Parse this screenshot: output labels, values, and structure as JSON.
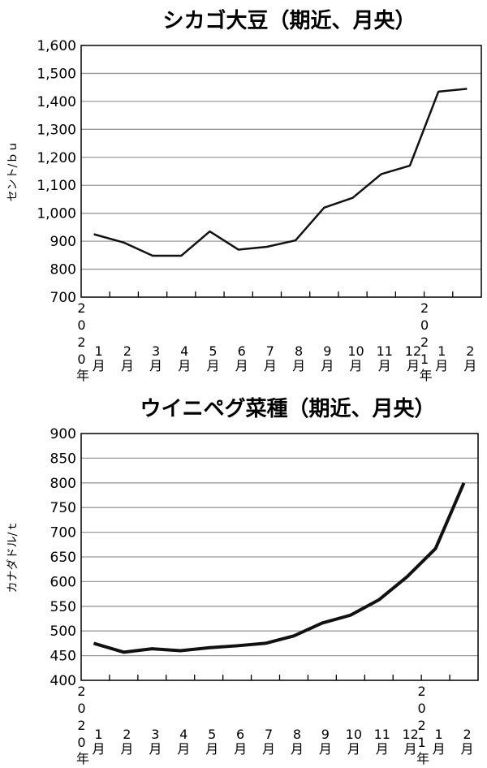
{
  "chart_data": [
    {
      "type": "line",
      "title": "シカゴ大豆（期近、月央）",
      "ylabel": "セント/ｂｕ",
      "xlabel": "",
      "ylim": [
        700,
        1600
      ],
      "yticks": [
        "700",
        "800",
        "900",
        "1,000",
        "1,100",
        "1,200",
        "1,300",
        "1,400",
        "1,500",
        "1,600"
      ],
      "grid": true,
      "year_labels": [
        "2020年",
        "2021年"
      ],
      "categories": [
        "1月",
        "2月",
        "3月",
        "4月",
        "5月",
        "6月",
        "7月",
        "8月",
        "9月",
        "10月",
        "11月",
        "12月",
        "1月",
        "2月"
      ],
      "values": [
        925,
        895,
        848,
        848,
        935,
        870,
        880,
        903,
        1020,
        1055,
        1140,
        1170,
        1435,
        1445
      ],
      "line_color": "#111111"
    },
    {
      "type": "line",
      "title": "ウイニペグ菜種（期近、月央）",
      "ylabel": "カナダドル/ｔ",
      "xlabel": "",
      "ylim": [
        400,
        900
      ],
      "yticks": [
        "400",
        "450",
        "500",
        "550",
        "600",
        "650",
        "700",
        "750",
        "800",
        "850",
        "900"
      ],
      "grid": true,
      "year_labels": [
        "2020年",
        "2021年"
      ],
      "categories": [
        "1月",
        "2月",
        "3月",
        "4月",
        "5月",
        "6月",
        "7月",
        "8月",
        "9月",
        "10月",
        "11月",
        "12月",
        "1月",
        "2月"
      ],
      "values": [
        475,
        457,
        464,
        460,
        466,
        470,
        475,
        490,
        516,
        532,
        563,
        610,
        667,
        800
      ],
      "line_color": "#111111"
    }
  ]
}
